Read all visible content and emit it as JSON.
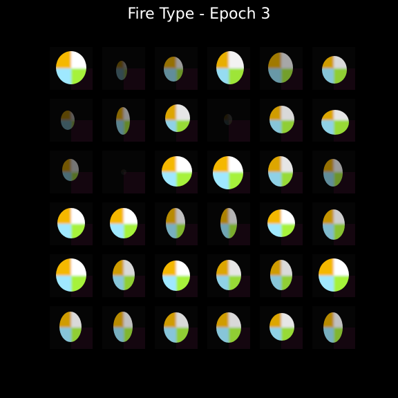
{
  "title": "Fire Type - Epoch 3",
  "grid": {
    "rows": 6,
    "cols": 6
  },
  "colors": {
    "background": "#000000",
    "quadrant_top_left": "#f5b800",
    "quadrant_top_right": "#ffffff",
    "quadrant_bottom_left": "#9fe8ff",
    "quadrant_bottom_right": "#a6f23a"
  },
  "samples": [
    {
      "id": 1,
      "brightness": 1.0
    },
    {
      "id": 2,
      "brightness": 0.3
    },
    {
      "id": 3,
      "brightness": 0.6
    },
    {
      "id": 4,
      "brightness": 0.95
    },
    {
      "id": 5,
      "brightness": 0.65
    },
    {
      "id": 6,
      "brightness": 0.85
    },
    {
      "id": 7,
      "brightness": 0.35
    },
    {
      "id": 8,
      "brightness": 0.55
    },
    {
      "id": 9,
      "brightness": 0.9
    },
    {
      "id": 10,
      "brightness": 0.1
    },
    {
      "id": 11,
      "brightness": 0.85
    },
    {
      "id": 12,
      "brightness": 0.9
    },
    {
      "id": 13,
      "brightness": 0.45
    },
    {
      "id": 14,
      "brightness": 0.05
    },
    {
      "id": 15,
      "brightness": 1.0
    },
    {
      "id": 16,
      "brightness": 1.0
    },
    {
      "id": 17,
      "brightness": 0.9
    },
    {
      "id": 18,
      "brightness": 0.6
    },
    {
      "id": 19,
      "brightness": 1.0
    },
    {
      "id": 20,
      "brightness": 1.0
    },
    {
      "id": 21,
      "brightness": 0.75
    },
    {
      "id": 22,
      "brightness": 0.7
    },
    {
      "id": 23,
      "brightness": 1.0
    },
    {
      "id": 24,
      "brightness": 0.8
    },
    {
      "id": 25,
      "brightness": 1.0
    },
    {
      "id": 26,
      "brightness": 0.85
    },
    {
      "id": 27,
      "brightness": 1.0
    },
    {
      "id": 28,
      "brightness": 0.9
    },
    {
      "id": 29,
      "brightness": 0.85
    },
    {
      "id": 30,
      "brightness": 1.0
    },
    {
      "id": 31,
      "brightness": 0.85
    },
    {
      "id": 32,
      "brightness": 0.75
    },
    {
      "id": 33,
      "brightness": 0.85
    },
    {
      "id": 34,
      "brightness": 0.85
    },
    {
      "id": 35,
      "brightness": 0.9
    },
    {
      "id": 36,
      "brightness": 0.75
    }
  ]
}
